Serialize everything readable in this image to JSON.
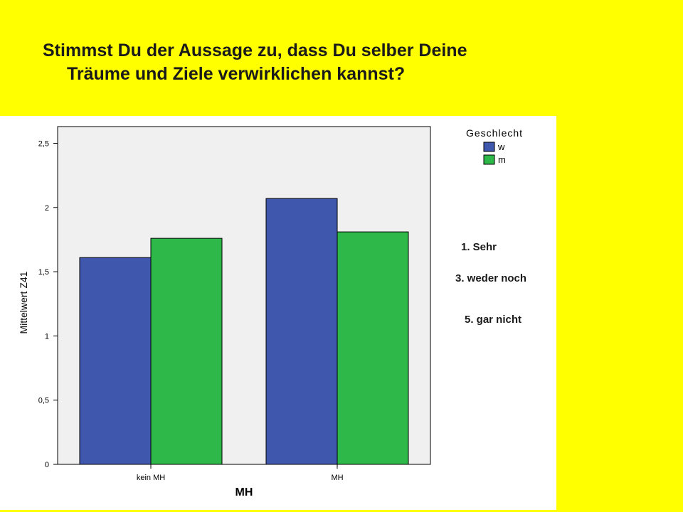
{
  "title": {
    "line1": "Stimmst Du der Aussage zu, dass Du selber Deine",
    "line2": "Träume und Ziele verwirklichen kannst?"
  },
  "notes": [
    "1. Sehr",
    "3. weder noch",
    "5. gar nicht"
  ],
  "colors": {
    "background": "#ffff00",
    "plot_bg": "#f0f0f0",
    "w": "#3f57ac",
    "m": "#2fb84a"
  },
  "chart_data": {
    "type": "bar",
    "categories": [
      "kein MH",
      "MH"
    ],
    "series": [
      {
        "name": "w",
        "values": [
          1.61,
          2.07
        ]
      },
      {
        "name": "m",
        "values": [
          1.76,
          1.81
        ]
      }
    ],
    "xlabel": "MH",
    "ylabel": "Mittelwert Z41",
    "ylim": [
      0,
      2.63
    ],
    "yticks": [
      0,
      0.5,
      1,
      1.5,
      2,
      2.5
    ],
    "ytick_labels": [
      "0",
      "0,5",
      "1",
      "1,5",
      "2",
      "2,5"
    ],
    "legend": {
      "title": "Geschlecht",
      "placement": "top-right"
    }
  }
}
